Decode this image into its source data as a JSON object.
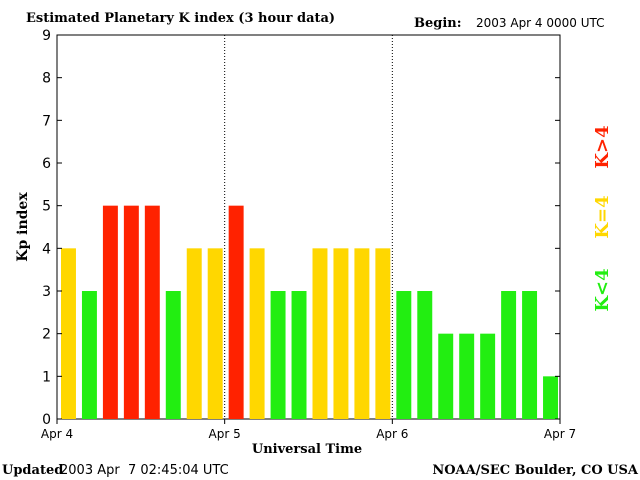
{
  "header": {
    "title": "Estimated Planetary K index (3 hour data)",
    "begin_label": "Begin:",
    "begin_value": "2003 Apr 4 0000 UTC"
  },
  "footer": {
    "updated_label": "Updated",
    "updated_value": "2003 Apr  7 02:45:04 UTC",
    "source": "NOAA/SEC Boulder, CO USA"
  },
  "legend": {
    "high": "K>4",
    "mid": "K=4",
    "low": "K<4"
  },
  "colors": {
    "low": "#22ee11",
    "mid": "#ffd700",
    "high": "#ff2200"
  },
  "chart_data": {
    "type": "bar",
    "title": "Estimated Planetary K index (3 hour data)",
    "xlabel": "Universal Time",
    "ylabel": "Kp index",
    "ylim": [
      0,
      9
    ],
    "yticks": [
      0,
      1,
      2,
      3,
      4,
      5,
      6,
      7,
      8,
      9
    ],
    "xticks": [
      "Apr 4",
      "Apr 5",
      "Apr 6",
      "Apr 7"
    ],
    "day_dividers": [
      "Apr 5",
      "Apr 6"
    ],
    "values": [
      4,
      3,
      5,
      5,
      5,
      3,
      4,
      4,
      5,
      4,
      3,
      3,
      4,
      4,
      4,
      4,
      3,
      3,
      2,
      2,
      2,
      3,
      3,
      1
    ]
  }
}
